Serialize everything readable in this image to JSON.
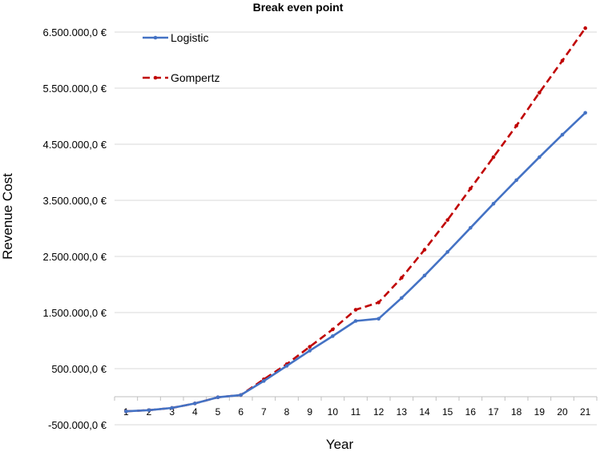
{
  "chart_data": {
    "type": "line",
    "title": "Break even point",
    "xlabel": "Year",
    "ylabel": "Revenue Cost",
    "x": [
      1,
      2,
      3,
      4,
      5,
      6,
      7,
      8,
      9,
      10,
      11,
      12,
      13,
      14,
      15,
      16,
      17,
      18,
      19,
      20,
      21
    ],
    "ylim": [
      -500000,
      6500000
    ],
    "ytick_values": [
      -500000,
      500000,
      1500000,
      2500000,
      3500000,
      4500000,
      5500000,
      6500000
    ],
    "ytick_labels": [
      "-500.000,0 €",
      "500.000,0 €",
      "1.500.000,0 €",
      "2.500.000,0 €",
      "3.500.000,0 €",
      "4.500.000,0 €",
      "5.500.000,0 €",
      "6.500.000,0 €"
    ],
    "grid": true,
    "legend_position": "top-left",
    "series": [
      {
        "name": "Logistic",
        "color": "#4472c4",
        "style": "solid",
        "values": [
          -260000,
          -240000,
          -200000,
          -120000,
          -10000,
          30000,
          280000,
          550000,
          820000,
          1080000,
          1350000,
          1390000,
          1760000,
          2160000,
          2580000,
          3010000,
          3440000,
          3860000,
          4270000,
          4670000,
          5060000
        ]
      },
      {
        "name": "Gompertz",
        "color": "#c00000",
        "style": "dashed",
        "values": [
          -260000,
          -240000,
          -200000,
          -120000,
          -10000,
          30000,
          310000,
          580000,
          890000,
          1200000,
          1550000,
          1680000,
          2120000,
          2620000,
          3150000,
          3710000,
          4270000,
          4830000,
          5420000,
          5990000,
          6570000
        ]
      }
    ]
  }
}
